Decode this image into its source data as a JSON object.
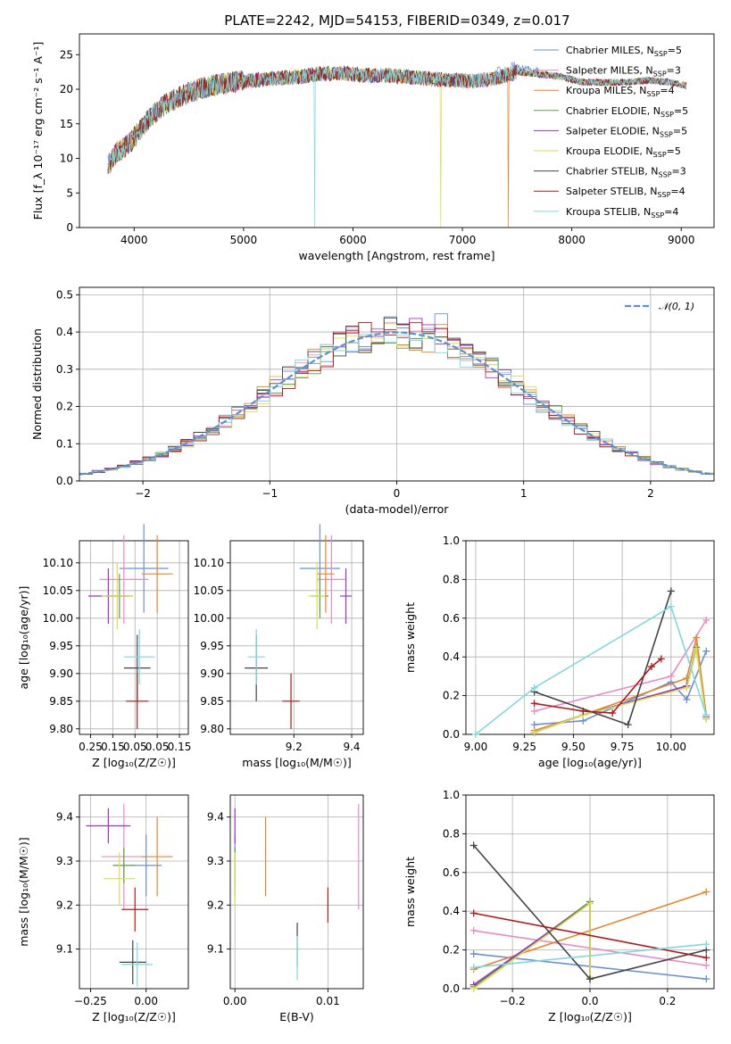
{
  "figure_title": "PLATE=2242, MJD=54153, FIBERID=0349, z=0.017",
  "chart_data": [
    {
      "id": "spectrum",
      "type": "line",
      "xlabel": "wavelength [Angstrom, rest frame]",
      "ylabel": "Flux [f_λ 10⁻¹⁷ erg cm⁻² s⁻¹ A⁻¹]",
      "xlim": [
        3500,
        9300
      ],
      "ylim": [
        0,
        28
      ],
      "xticks": [
        4000,
        5000,
        6000,
        7000,
        8000,
        9000
      ],
      "yticks": [
        0,
        5,
        10,
        15,
        20,
        25
      ],
      "grid": false,
      "legend_position": "top-right",
      "continuum": [
        [
          3760,
          9
        ],
        [
          3850,
          11
        ],
        [
          3950,
          12
        ],
        [
          4050,
          14
        ],
        [
          4150,
          16
        ],
        [
          4300,
          18
        ],
        [
          4500,
          19.5
        ],
        [
          4700,
          20.5
        ],
        [
          4900,
          21
        ],
        [
          5100,
          21.3
        ],
        [
          5300,
          21.6
        ],
        [
          5500,
          21.8
        ],
        [
          5700,
          22.2
        ],
        [
          5900,
          22.3
        ],
        [
          6100,
          22
        ],
        [
          6300,
          22
        ],
        [
          6500,
          21.8
        ],
        [
          6700,
          21.5
        ],
        [
          6900,
          21.3
        ],
        [
          7100,
          21.2
        ],
        [
          7300,
          21.5
        ],
        [
          7500,
          22.5
        ],
        [
          7700,
          22.2
        ],
        [
          7900,
          21.8
        ],
        [
          8100,
          21
        ],
        [
          8300,
          21
        ],
        [
          8500,
          21
        ],
        [
          8700,
          21.3
        ],
        [
          8900,
          21
        ],
        [
          9050,
          20.5
        ]
      ],
      "dropouts": [
        {
          "series": "Kroupa STELIB",
          "x": 5650
        },
        {
          "series": "Kroupa ELODIE",
          "x": 6800
        },
        {
          "series": "Kroupa MILES",
          "x": 7420
        }
      ],
      "series": [
        {
          "name": "Chabrier MILES, N_SSP=5",
          "label_main": "Chabrier MILES, N",
          "label_sub": "SSP",
          "label_end": "=5",
          "color": "#6a8fd8"
        },
        {
          "name": "Salpeter MILES, N_SSP=3",
          "label_main": "Salpeter MILES, N",
          "label_sub": "SSP",
          "label_end": "=3",
          "color": "#e98bc3"
        },
        {
          "name": "Kroupa MILES, N_SSP=4",
          "label_main": "Kroupa MILES, N",
          "label_sub": "SSP",
          "label_end": "=4",
          "color": "#e9842b"
        },
        {
          "name": "Chabrier ELODIE, N_SSP=5",
          "label_main": "Chabrier ELODIE, N",
          "label_sub": "SSP",
          "label_end": "=5",
          "color": "#5e9e4a"
        },
        {
          "name": "Salpeter ELODIE, N_SSP=5",
          "label_main": "Salpeter ELODIE, N",
          "label_sub": "SSP",
          "label_end": "=5",
          "color": "#9a34c9"
        },
        {
          "name": "Kroupa ELODIE, N_SSP=5",
          "label_main": "Kroupa ELODIE, N",
          "label_sub": "SSP",
          "label_end": "=5",
          "color": "#d8e04c"
        },
        {
          "name": "Chabrier STELIB, N_SSP=3",
          "label_main": "Chabrier STELIB, N",
          "label_sub": "SSP",
          "label_end": "=3",
          "color": "#444444"
        },
        {
          "name": "Salpeter STELIB, N_SSP=4",
          "label_main": "Salpeter STELIB, N",
          "label_sub": "SSP",
          "label_end": "=4",
          "color": "#b01818"
        },
        {
          "name": "Kroupa STELIB, N_SSP=4",
          "label_main": "Kroupa STELIB, N",
          "label_sub": "SSP",
          "label_end": "=4",
          "color": "#7fd8df"
        }
      ]
    },
    {
      "id": "residuals",
      "type": "line",
      "xlabel": "(data-model)/error",
      "ylabel": "Normed distribution",
      "xlim": [
        -2.5,
        2.5
      ],
      "ylim": [
        0,
        0.52
      ],
      "xticks": [
        -2,
        -1,
        0,
        1,
        2
      ],
      "yticks": [
        0.0,
        0.1,
        0.2,
        0.3,
        0.4,
        0.5
      ],
      "grid": true,
      "legend_position": "top-right",
      "gaussian_label": "𝒩(0, 1)",
      "gaussian_color": "#5b8fd6",
      "histogram_bin_width": 0.1
    },
    {
      "id": "age_vs_Z",
      "type": "scatter",
      "xlabel": "Z [log₁₀(Z/Z☉)]",
      "ylabel": "age  [log₁₀(age/yr)]",
      "xlim": [
        -0.3,
        0.19
      ],
      "ylim": [
        9.79,
        10.14
      ],
      "xticks": [
        -0.25,
        -0.15,
        -0.05,
        0.05,
        0.15
      ],
      "xtick_labels": [
        "0.25",
        "0.15",
        "0.05",
        "0.05",
        "0.15"
      ],
      "yticks": [
        9.8,
        9.85,
        9.9,
        9.95,
        10.0,
        10.05,
        10.1
      ],
      "grid": true,
      "points": [
        {
          "color": "#6a8fd8",
          "x": -0.01,
          "y": 10.09,
          "xerr": 0.11,
          "yerr": 0.08
        },
        {
          "color": "#e98bc3",
          "x": -0.1,
          "y": 10.07,
          "xerr": 0.11,
          "yerr": 0.08
        },
        {
          "color": "#e9842b",
          "x": 0.05,
          "y": 10.08,
          "xerr": 0.07,
          "yerr": 0.07
        },
        {
          "color": "#5e9e4a",
          "x": -0.12,
          "y": 10.04,
          "xerr": 0.06,
          "yerr": 0.04
        },
        {
          "color": "#9a34c9",
          "x": -0.17,
          "y": 10.04,
          "xerr": 0.09,
          "yerr": 0.05
        },
        {
          "color": "#d8e04c",
          "x": -0.13,
          "y": 10.04,
          "xerr": 0.07,
          "yerr": 0.06
        },
        {
          "color": "#444444",
          "x": -0.04,
          "y": 9.91,
          "xerr": 0.06,
          "yerr": 0.06
        },
        {
          "color": "#b01818",
          "x": -0.04,
          "y": 9.85,
          "xerr": 0.05,
          "yerr": 0.05
        },
        {
          "color": "#7fd8df",
          "x": -0.03,
          "y": 9.93,
          "xerr": 0.07,
          "yerr": 0.05
        }
      ]
    },
    {
      "id": "age_vs_mass",
      "type": "scatter",
      "xlabel": "mass [log₁₀(M/M☉)]",
      "ylabel": "",
      "xlim": [
        8.98,
        9.44
      ],
      "ylim": [
        9.79,
        10.14
      ],
      "xticks": [
        9.2,
        9.4
      ],
      "yticks": [
        9.8,
        9.85,
        9.9,
        9.95,
        10.0,
        10.05,
        10.1
      ],
      "grid": true,
      "points": [
        {
          "color": "#6a8fd8",
          "x": 9.29,
          "y": 10.09,
          "xerr": 0.07,
          "yerr": 0.08
        },
        {
          "color": "#e98bc3",
          "x": 9.33,
          "y": 10.07,
          "xerr": 0.05,
          "yerr": 0.08
        },
        {
          "color": "#e9842b",
          "x": 9.31,
          "y": 10.08,
          "xerr": 0.03,
          "yerr": 0.07
        },
        {
          "color": "#5e9e4a",
          "x": 9.29,
          "y": 10.04,
          "xerr": 0.03,
          "yerr": 0.04
        },
        {
          "color": "#9a34c9",
          "x": 9.38,
          "y": 10.04,
          "xerr": 0.02,
          "yerr": 0.05
        },
        {
          "color": "#d8e04c",
          "x": 9.28,
          "y": 10.04,
          "xerr": 0.03,
          "yerr": 0.06
        },
        {
          "color": "#444444",
          "x": 9.07,
          "y": 9.91,
          "xerr": 0.04,
          "yerr": 0.06
        },
        {
          "color": "#b01818",
          "x": 9.19,
          "y": 9.85,
          "xerr": 0.03,
          "yerr": 0.05
        },
        {
          "color": "#7fd8df",
          "x": 9.07,
          "y": 9.93,
          "xerr": 0.03,
          "yerr": 0.05
        }
      ]
    },
    {
      "id": "massweight_vs_age",
      "type": "line",
      "xlabel": "age  [log₁₀(age/yr)]",
      "ylabel": "mass weight",
      "xlim": [
        8.95,
        10.22
      ],
      "ylim": [
        0,
        1
      ],
      "xticks": [
        9.0,
        9.25,
        9.5,
        9.75,
        10.0
      ],
      "yticks": [
        0.0,
        0.2,
        0.4,
        0.6,
        0.8,
        1.0
      ],
      "grid": true,
      "series": [
        {
          "color": "#6a8fd8",
          "points": [
            [
              9.3,
              0.05
            ],
            [
              9.55,
              0.07
            ],
            [
              10.0,
              0.27
            ],
            [
              10.08,
              0.18
            ],
            [
              10.18,
              0.43
            ]
          ]
        },
        {
          "color": "#e98bc3",
          "points": [
            [
              9.3,
              0.12
            ],
            [
              10.0,
              0.3
            ],
            [
              10.18,
              0.59
            ]
          ]
        },
        {
          "color": "#e9842b",
          "points": [
            [
              9.3,
              0.02
            ],
            [
              9.55,
              0.1
            ],
            [
              10.08,
              0.29
            ],
            [
              10.13,
              0.5
            ],
            [
              10.18,
              0.1
            ]
          ]
        },
        {
          "color": "#5e9e4a",
          "points": [
            [
              9.3,
              0.01
            ],
            [
              9.55,
              0.1
            ],
            [
              10.08,
              0.25
            ],
            [
              10.13,
              0.45
            ],
            [
              10.18,
              0.08
            ]
          ]
        },
        {
          "color": "#9a34c9",
          "points": [
            [
              9.3,
              0.01
            ],
            [
              9.55,
              0.1
            ],
            [
              10.08,
              0.25
            ],
            [
              10.13,
              0.44
            ],
            [
              10.18,
              0.09
            ]
          ]
        },
        {
          "color": "#d8e04c",
          "points": [
            [
              9.3,
              0.01
            ],
            [
              9.55,
              0.1
            ],
            [
              10.08,
              0.24
            ],
            [
              10.13,
              0.44
            ],
            [
              10.18,
              0.08
            ]
          ]
        },
        {
          "color": "#444444",
          "points": [
            [
              9.3,
              0.22
            ],
            [
              9.78,
              0.05
            ],
            [
              10.0,
              0.74
            ]
          ]
        },
        {
          "color": "#b01818",
          "points": [
            [
              9.3,
              0.16
            ],
            [
              9.55,
              0.12
            ],
            [
              9.7,
              0.11
            ],
            [
              9.9,
              0.35
            ],
            [
              9.95,
              0.39
            ]
          ]
        },
        {
          "color": "#7fd8df",
          "points": [
            [
              9.0,
              0.0
            ],
            [
              9.3,
              0.24
            ],
            [
              10.0,
              0.66
            ],
            [
              10.18,
              0.1
            ]
          ]
        }
      ]
    },
    {
      "id": "mass_vs_Z",
      "type": "scatter",
      "xlabel": "Z [log₁₀(Z/Z☉)]",
      "ylabel": "mass [log₁₀(M/M☉)]",
      "xlim": [
        -0.3,
        0.19
      ],
      "ylim": [
        9.01,
        9.45
      ],
      "xticks": [
        -0.25,
        0.0
      ],
      "xtick_labels": [
        "−0.25",
        "0.00"
      ],
      "yticks": [
        9.1,
        9.2,
        9.3,
        9.4
      ],
      "grid": true,
      "points": [
        {
          "color": "#6a8fd8",
          "x": 0.0,
          "y": 9.29,
          "xerr": 0.07,
          "yerr": 0.07
        },
        {
          "color": "#e98bc3",
          "x": -0.1,
          "y": 9.31,
          "xerr": 0.1,
          "yerr": 0.12
        },
        {
          "color": "#e9842b",
          "x": 0.05,
          "y": 9.31,
          "xerr": 0.07,
          "yerr": 0.09
        },
        {
          "color": "#5e9e4a",
          "x": -0.1,
          "y": 9.29,
          "xerr": 0.05,
          "yerr": 0.04
        },
        {
          "color": "#9a34c9",
          "x": -0.17,
          "y": 9.38,
          "xerr": 0.1,
          "yerr": 0.04
        },
        {
          "color": "#d8e04c",
          "x": -0.12,
          "y": 9.26,
          "xerr": 0.07,
          "yerr": 0.06
        },
        {
          "color": "#444444",
          "x": -0.06,
          "y": 9.07,
          "xerr": 0.06,
          "yerr": 0.05
        },
        {
          "color": "#b01818",
          "x": -0.05,
          "y": 9.19,
          "xerr": 0.06,
          "yerr": 0.05
        },
        {
          "color": "#7fd8df",
          "x": -0.04,
          "y": 9.065,
          "xerr": 0.07,
          "yerr": 0.05
        }
      ]
    },
    {
      "id": "mass_vs_EBV",
      "type": "scatter",
      "xlabel": "E(B-V)",
      "ylabel": "",
      "xlim": [
        -0.0005,
        0.0138
      ],
      "ylim": [
        9.01,
        9.45
      ],
      "xticks": [
        0.0,
        0.01
      ],
      "xtick_labels": [
        "0.00",
        "0.01"
      ],
      "yticks": [
        9.1,
        9.2,
        9.3,
        9.4
      ],
      "grid": true,
      "points": [
        {
          "color": "#6a8fd8",
          "x": 0.0,
          "y": 9.29,
          "xerr": 0.0,
          "yerr": 0.07
        },
        {
          "color": "#e98bc3",
          "x": 0.0133,
          "y": 9.31,
          "xerr": 0.0,
          "yerr": 0.12
        },
        {
          "color": "#e9842b",
          "x": 0.0033,
          "y": 9.31,
          "xerr": 0.0,
          "yerr": 0.09
        },
        {
          "color": "#5e9e4a",
          "x": 0.0,
          "y": 9.29,
          "xerr": 0.0,
          "yerr": 0.04
        },
        {
          "color": "#9a34c9",
          "x": 0.0,
          "y": 9.38,
          "xerr": 0.0,
          "yerr": 0.04
        },
        {
          "color": "#d8e04c",
          "x": 0.0,
          "y": 9.26,
          "xerr": 0.0,
          "yerr": 0.06
        },
        {
          "color": "#444444",
          "x": 0.0067,
          "y": 9.11,
          "xerr": 0.0,
          "yerr": 0.05
        },
        {
          "color": "#b01818",
          "x": 0.01,
          "y": 9.2,
          "xerr": 0.0,
          "yerr": 0.04
        },
        {
          "color": "#7fd8df",
          "x": 0.0067,
          "y": 9.08,
          "xerr": 0.0,
          "yerr": 0.05
        }
      ]
    },
    {
      "id": "massweight_vs_Z",
      "type": "line",
      "xlabel": "Z [log₁₀(Z/Z☉)]",
      "ylabel": "mass weight",
      "xlim": [
        -0.32,
        0.32
      ],
      "ylim": [
        0,
        1
      ],
      "xticks": [
        -0.2,
        0.0,
        0.2
      ],
      "yticks": [
        0.0,
        0.2,
        0.4,
        0.6,
        0.8,
        1.0
      ],
      "grid": true,
      "series": [
        {
          "color": "#6a8fd8",
          "points": [
            [
              -0.3,
              0.18
            ],
            [
              0.3,
              0.05
            ]
          ]
        },
        {
          "color": "#e98bc3",
          "points": [
            [
              -0.3,
              0.3
            ],
            [
              0.3,
              0.12
            ]
          ]
        },
        {
          "color": "#e9842b",
          "points": [
            [
              -0.3,
              0.1
            ],
            [
              0.3,
              0.5
            ]
          ]
        },
        {
          "color": "#5e9e4a",
          "points": [
            [
              -0.3,
              0.01
            ],
            [
              0.0,
              0.45
            ],
            [
              0.0,
              0.05
            ]
          ]
        },
        {
          "color": "#9a34c9",
          "points": [
            [
              -0.3,
              0.02
            ],
            [
              0.0,
              0.44
            ],
            [
              0.0,
              0.05
            ]
          ]
        },
        {
          "color": "#d8e04c",
          "points": [
            [
              -0.3,
              0.0
            ],
            [
              0.0,
              0.44
            ],
            [
              0.0,
              0.06
            ]
          ]
        },
        {
          "color": "#444444",
          "points": [
            [
              -0.3,
              0.74
            ],
            [
              0.0,
              0.05
            ],
            [
              0.3,
              0.2
            ]
          ]
        },
        {
          "color": "#b01818",
          "points": [
            [
              -0.3,
              0.39
            ],
            [
              0.3,
              0.16
            ]
          ]
        },
        {
          "color": "#7fd8df",
          "points": [
            [
              -0.3,
              0.11
            ],
            [
              0.3,
              0.23
            ]
          ]
        }
      ]
    }
  ]
}
